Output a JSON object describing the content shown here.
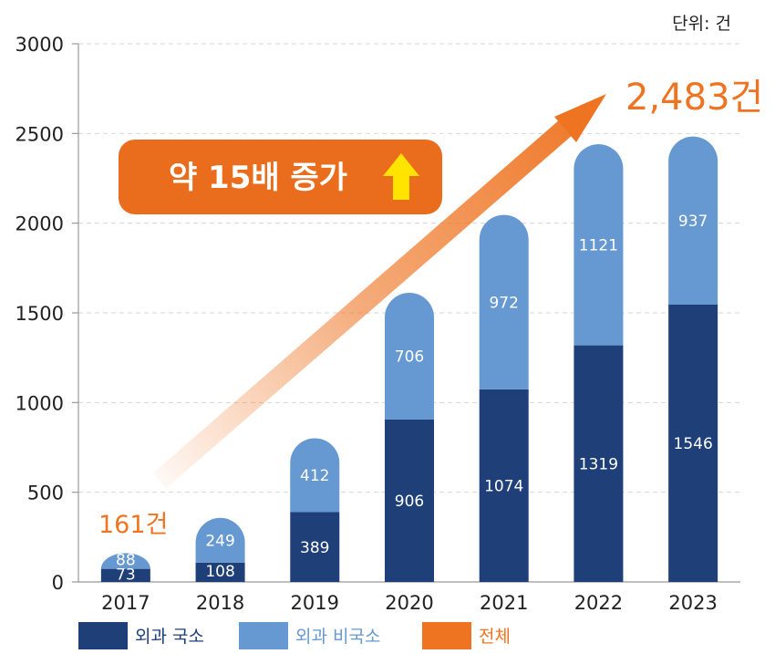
{
  "chart_data": {
    "type": "bar",
    "stacked": true,
    "unit_label": "단위: 건",
    "categories": [
      "2017",
      "2018",
      "2019",
      "2020",
      "2021",
      "2022",
      "2023"
    ],
    "series": [
      {
        "name": "외과 국소",
        "values": [
          73,
          108,
          389,
          906,
          1074,
          1319,
          1546
        ],
        "color": "#1f3f79"
      },
      {
        "name": "외과 비국소",
        "values": [
          88,
          249,
          412,
          706,
          972,
          1121,
          937
        ],
        "color": "#6699d1"
      }
    ],
    "yticks": [
      0,
      500,
      1000,
      1500,
      2000,
      2500,
      3000
    ],
    "ylim": [
      0,
      3000
    ],
    "grid": true,
    "legend": {
      "placement": "bottom-left",
      "items": [
        {
          "label": "외과 국소",
          "color": "#1f3f79"
        },
        {
          "label": "외과 비국소",
          "color": "#6699d1"
        },
        {
          "label": "전체",
          "color": "#ee7422"
        }
      ]
    },
    "annotations": {
      "start_total": "161건",
      "end_total": "2,483건",
      "callout": "약 15배 증가"
    },
    "trend_color": "#ee7422"
  }
}
